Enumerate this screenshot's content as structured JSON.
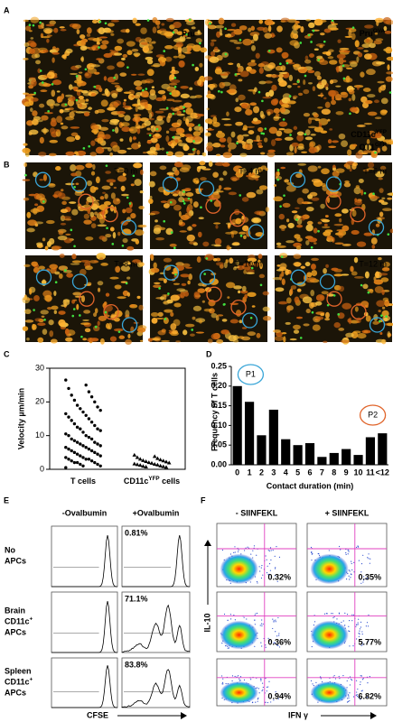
{
  "panel_labels": [
    "A",
    "B",
    "C",
    "D",
    "E",
    "F"
  ],
  "panel_a": {
    "left_label": "Pru",
    "right_label": "Pru",
    "right_label_sup": "OVA",
    "legend": [
      {
        "text": "CD11c",
        "sup": "YFP"
      },
      {
        "text": "OT1",
        "sup": "GFP"
      }
    ]
  },
  "panel_b": {
    "time_labels": [
      "T=0 m",
      "T=4 m",
      "T=6 m",
      "T=8 m",
      "T=10 m",
      "T=12 m"
    ]
  },
  "chart_data": [
    {
      "type": "strip",
      "ylabel": "Velocity µm/min",
      "categories": [
        {
          "text": "T  cells"
        },
        {
          "text": "CD11c",
          "sup": "YFP",
          "tail": " cells"
        }
      ],
      "values": [
        [
          26.5,
          25,
          24,
          23,
          22,
          21.5,
          20.5,
          20,
          19,
          18.5,
          18,
          17.5,
          17,
          16.5,
          16,
          15.5,
          15,
          14.5,
          14,
          13.5,
          13,
          12.5,
          12,
          12,
          11.5,
          11,
          10.5,
          10,
          10,
          9.5,
          9,
          9,
          8.5,
          8,
          8,
          7.5,
          7.5,
          7,
          7,
          6.5,
          6.5,
          6,
          6,
          5.5,
          5.5,
          5,
          5,
          4.5,
          4.5,
          4,
          4,
          3.5,
          3.5,
          3,
          3,
          3,
          2.5,
          2.5,
          2,
          2,
          2,
          1.5,
          1.5,
          1,
          1,
          0.5
        ],
        [
          4.2,
          3.8,
          3.5,
          3.2,
          3,
          2.8,
          2.6,
          2.5,
          2.3,
          2.2,
          2,
          1.9,
          1.8,
          1.6,
          1.5,
          1.4,
          1.3,
          1.2,
          1,
          0.9,
          0.8,
          0.7,
          0.6
        ]
      ],
      "ylim": [
        0,
        30
      ],
      "yticks": [
        0,
        10,
        20,
        30
      ]
    },
    {
      "type": "bar",
      "ylabel": "Frequency of T cells",
      "xlabel": "Contact duration (min)",
      "categories": [
        "0",
        "1",
        "2",
        "3",
        "4",
        "5",
        "6",
        "7",
        "8",
        "9",
        "10",
        "11",
        "<12"
      ],
      "values": [
        0.2,
        0.16,
        0.075,
        0.14,
        0.065,
        0.05,
        0.055,
        0.02,
        0.03,
        0.04,
        0.025,
        0.07,
        0.08
      ],
      "color": "#000000",
      "ylim": [
        0,
        0.25
      ],
      "yticks": [
        {
          "value": 0,
          "label": "0.00"
        },
        {
          "value": 0.05,
          "label": "0.05"
        },
        {
          "value": 0.1,
          "label": "0.10"
        },
        {
          "value": 0.15,
          "label": "0.15"
        },
        {
          "value": 0.2,
          "label": "0.20"
        },
        {
          "value": 0.25,
          "label": "0.25"
        }
      ],
      "annotations": [
        {
          "text": "P1",
          "color": "#3aa6d8"
        },
        {
          "text": "P2",
          "color": "#e0642a"
        }
      ]
    }
  ],
  "panel_e": {
    "columns": [
      "-Ovalbumin",
      "+Ovalbumin"
    ],
    "rows": [
      [
        [
          "No"
        ],
        [
          "APCs"
        ]
      ],
      [
        [
          "Brain"
        ],
        [
          "CD11c",
          "+"
        ],
        [
          "APCs"
        ]
      ],
      [
        [
          "Spleen"
        ],
        [
          "CD11c",
          "+"
        ],
        [
          "APCs"
        ]
      ]
    ],
    "percentages": [
      "0.81%",
      "71.1%",
      "83.8%"
    ],
    "x_axis": "CFSE"
  },
  "panel_f": {
    "columns": [
      "- SIINFEKL",
      "+ SIINFEKL"
    ],
    "percentages": [
      [
        "0.32%",
        "0.35%"
      ],
      [
        "0.36%",
        "5.77%"
      ],
      [
        "0.94%",
        "6.82%"
      ]
    ],
    "y_axis": "IL-10",
    "x_axis": "IFN γ"
  }
}
